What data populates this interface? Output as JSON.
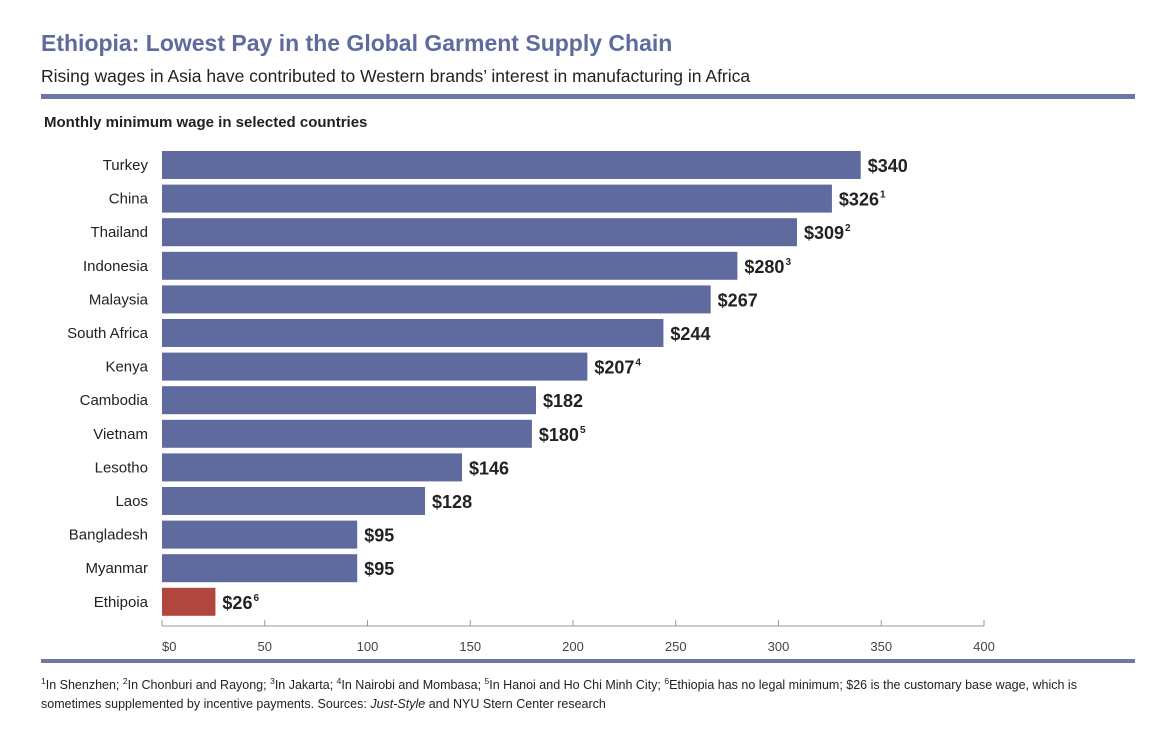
{
  "title": "Ethiopia: Lowest Pay in the Global Garment Supply Chain",
  "subtitle": "Rising wages in Asia have contributed to Western brands’ interest in manufacturing in Africa",
  "chart_heading": "Monthly minimum wage in selected countries",
  "colors": {
    "bar": "#5f6b9e",
    "highlight": "#b0463d",
    "rule": "#6e77a6"
  },
  "chart_data": {
    "type": "bar",
    "orientation": "horizontal",
    "title": "Monthly minimum wage in selected countries",
    "categories": [
      "Turkey",
      "China",
      "Thailand",
      "Indonesia",
      "Malaysia",
      "South Africa",
      "Kenya",
      "Cambodia",
      "Vietnam",
      "Lesotho",
      "Laos",
      "Bangladesh",
      "Myanmar",
      "Ethipoia"
    ],
    "values": [
      340,
      326,
      309,
      280,
      267,
      244,
      207,
      182,
      180,
      146,
      128,
      95,
      95,
      26
    ],
    "value_labels": [
      "$340",
      "$326",
      "$309",
      "$280",
      "$267",
      "$244",
      "$207",
      "$182",
      "$180",
      "$146",
      "$128",
      "$95",
      "$95",
      "$26"
    ],
    "footnote_marks": [
      "",
      "1",
      "2",
      "3",
      "",
      "",
      "4",
      "",
      "5",
      "",
      "",
      "",
      "",
      "6"
    ],
    "highlight_category": "Ethipoia",
    "xlim": [
      0,
      400
    ],
    "xticks": [
      0,
      50,
      100,
      150,
      200,
      250,
      300,
      350,
      400
    ],
    "xtick_labels": [
      "$0",
      "50",
      "100",
      "150",
      "200",
      "250",
      "300",
      "350",
      "400"
    ],
    "grid": false
  },
  "footnote": {
    "items": [
      {
        "mark": "1",
        "text": "In Shenzhen; "
      },
      {
        "mark": "2",
        "text": "In Chonburi and Rayong; "
      },
      {
        "mark": "3",
        "text": "In Jakarta; "
      },
      {
        "mark": "4",
        "text": "In Nairobi and Mombasa; "
      },
      {
        "mark": "5",
        "text": "In Hanoi and Ho Chi Minh City; "
      },
      {
        "mark": "6",
        "text": "Ethiopia has no legal minimum; $26 is the customary base wage, which is sometimes supplemented by incentive payments. Sources: "
      }
    ],
    "source_italic": "Just-Style",
    "source_rest": " and NYU Stern Center research"
  }
}
